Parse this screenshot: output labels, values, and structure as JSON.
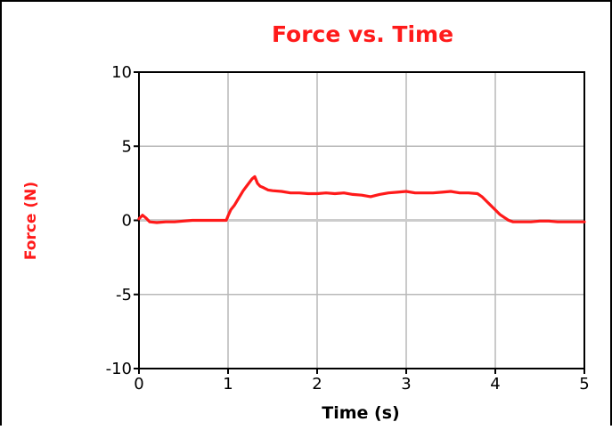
{
  "chart_data": {
    "type": "line",
    "title": "Force vs. Time",
    "xlabel": "Time (s)",
    "ylabel": "Force (N)",
    "xlim": [
      0,
      5
    ],
    "ylim": [
      -10,
      10
    ],
    "x_ticks": [
      0,
      1,
      2,
      3,
      4,
      5
    ],
    "y_ticks": [
      -10,
      -5,
      0,
      5,
      10
    ],
    "x_tick_labels": [
      "0",
      "1",
      "2",
      "3",
      "4",
      "5"
    ],
    "y_tick_labels": [
      "-10",
      "-5",
      "0",
      "5",
      "10"
    ],
    "grid": true,
    "line_color": "#ff1a1a",
    "grid_color": "#b8b8b8",
    "zero_line_color": "#cccccc",
    "series": [
      {
        "x": [
          0,
          0.04,
          0.08,
          0.12,
          0.2,
          0.3,
          0.4,
          0.5,
          0.6,
          0.7,
          0.8,
          0.9,
          0.98,
          1.0,
          1.03,
          1.07,
          1.12,
          1.17,
          1.22,
          1.27,
          1.3,
          1.33,
          1.36,
          1.4,
          1.45,
          1.5,
          1.6,
          1.7,
          1.8,
          1.9,
          2.0,
          2.1,
          2.2,
          2.3,
          2.4,
          2.5,
          2.6,
          2.7,
          2.8,
          2.9,
          3.0,
          3.1,
          3.2,
          3.3,
          3.4,
          3.5,
          3.6,
          3.7,
          3.8,
          3.85,
          3.9,
          3.95,
          4.0,
          4.05,
          4.1,
          4.15,
          4.2,
          4.3,
          4.4,
          4.5,
          4.6,
          4.7,
          4.8,
          4.9,
          5.0
        ],
        "y": [
          0.1,
          0.35,
          0.15,
          -0.1,
          -0.15,
          -0.1,
          -0.1,
          -0.05,
          0.0,
          0.0,
          0.0,
          0.0,
          0.0,
          0.3,
          0.7,
          1.0,
          1.5,
          2.0,
          2.4,
          2.8,
          2.95,
          2.5,
          2.3,
          2.2,
          2.05,
          2.0,
          1.95,
          1.85,
          1.85,
          1.8,
          1.8,
          1.85,
          1.8,
          1.85,
          1.75,
          1.7,
          1.6,
          1.75,
          1.85,
          1.9,
          1.95,
          1.85,
          1.85,
          1.85,
          1.9,
          1.95,
          1.85,
          1.85,
          1.8,
          1.6,
          1.3,
          1.0,
          0.7,
          0.4,
          0.2,
          0.0,
          -0.1,
          -0.1,
          -0.1,
          -0.05,
          -0.05,
          -0.1,
          -0.1,
          -0.1,
          -0.1
        ]
      }
    ]
  }
}
